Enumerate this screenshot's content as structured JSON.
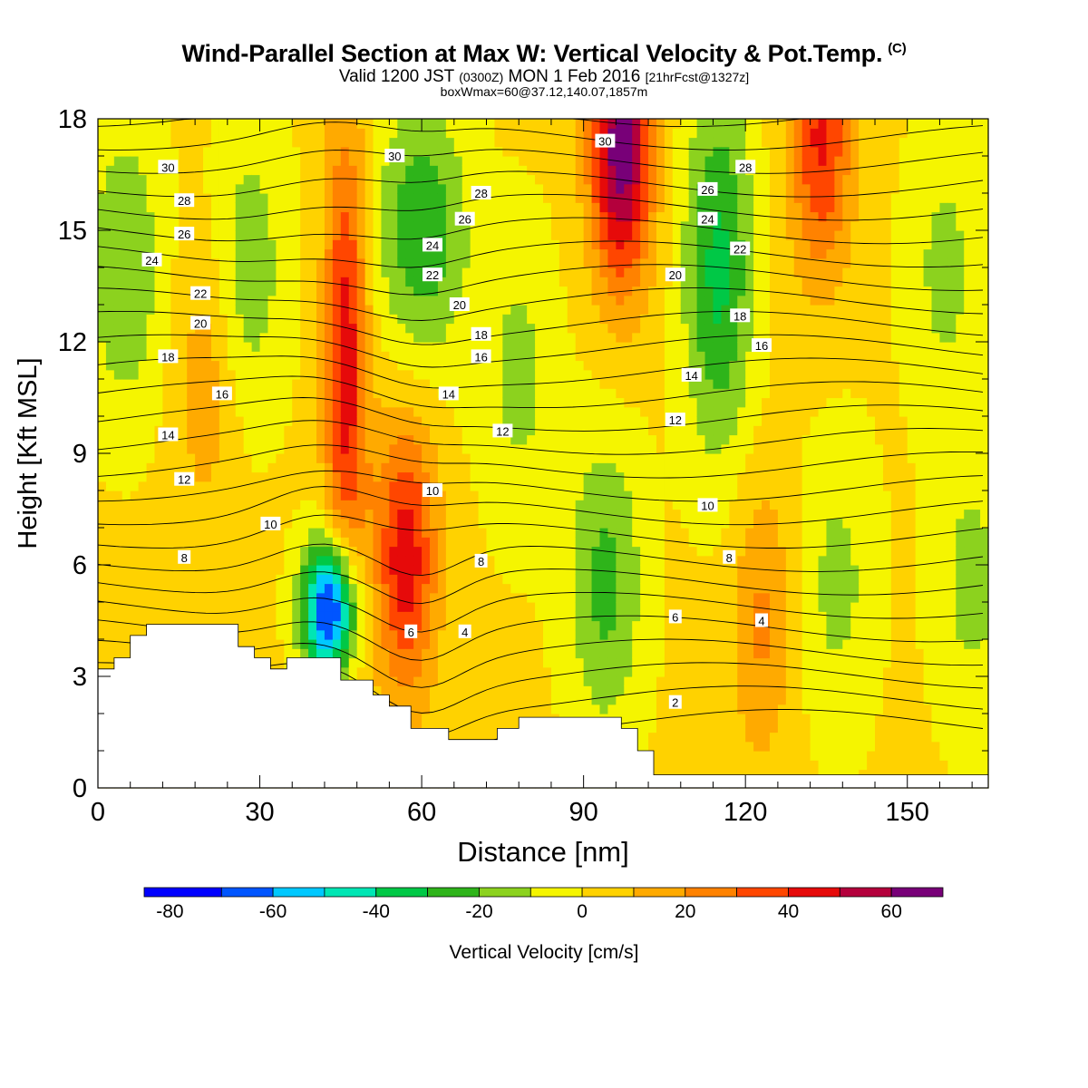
{
  "header": {
    "title": "Wind-Parallel Section at Max W: Vertical Velocity & Pot.Temp.",
    "title_mark": "(C)",
    "valid_prefix": "Valid 1200 JST",
    "valid_utc": "(0300Z)",
    "valid_date": "MON 1 Feb 2016",
    "forecast": "[21hrFcst@1327z]",
    "box_info": "boxWmax=60@37.12,140.07,1857m"
  },
  "chart_data": {
    "type": "heatmap",
    "xlabel": "Distance [nm]",
    "ylabel": "Height [Kft MSL]",
    "xlim": [
      0,
      165
    ],
    "ylim": [
      0,
      18
    ],
    "x_ticks": [
      0,
      30,
      60,
      90,
      120,
      150
    ],
    "y_ticks": [
      0,
      3,
      6,
      9,
      12,
      15,
      18
    ],
    "colorbar": {
      "label": "Vertical Velocity [cm/s]",
      "tick_labels": [
        "-80",
        "-60",
        "-40",
        "-20",
        "0",
        "20",
        "40",
        "60"
      ],
      "tick_values": [
        -80,
        -60,
        -40,
        -20,
        0,
        20,
        40,
        60
      ],
      "range": [
        -85,
        70
      ],
      "levels": [
        -85,
        -70,
        -60,
        -50,
        -40,
        -30,
        -20,
        -10,
        0,
        10,
        20,
        30,
        40,
        50,
        60,
        70
      ],
      "colors": [
        "#0000ff",
        "#0055ff",
        "#00c8ff",
        "#00e6b4",
        "#00c846",
        "#2eb41a",
        "#8cd21e",
        "#f5f500",
        "#ffd200",
        "#ffaa00",
        "#ff8200",
        "#ff4600",
        "#e60a0a",
        "#b4003c",
        "#780078"
      ]
    },
    "vertical_velocity_features": [
      {
        "kind": "updraft",
        "x": 46,
        "y": 11.5,
        "peak": 45
      },
      {
        "kind": "updraft",
        "x": 57,
        "y": 6.2,
        "peak": 45
      },
      {
        "kind": "updraft",
        "x": 97,
        "y": 17.2,
        "peak": 65
      },
      {
        "kind": "updraft",
        "x": 134,
        "y": 17.5,
        "peak": 40
      },
      {
        "kind": "updraft",
        "x": 20,
        "y": 11,
        "peak": 15
      },
      {
        "kind": "updraft",
        "x": 123,
        "y": 4.5,
        "peak": 20
      },
      {
        "kind": "downdraft",
        "x": 43,
        "y": 4.8,
        "peak": -80
      },
      {
        "kind": "downdraft",
        "x": 60,
        "y": 15,
        "peak": -30
      },
      {
        "kind": "downdraft",
        "x": 115,
        "y": 14,
        "peak": -35
      },
      {
        "kind": "downdraft",
        "x": 94,
        "y": 5.5,
        "peak": -25
      },
      {
        "kind": "downdraft",
        "x": 5,
        "y": 14,
        "peak": -22
      },
      {
        "kind": "downdraft",
        "x": 28,
        "y": 14,
        "peak": -18
      },
      {
        "kind": "downdraft",
        "x": 78,
        "y": 11,
        "peak": -15
      },
      {
        "kind": "downdraft",
        "x": 157,
        "y": 14,
        "peak": -15
      },
      {
        "kind": "downdraft",
        "x": 137,
        "y": 5.5,
        "peak": -15
      },
      {
        "kind": "downdraft",
        "x": 162,
        "y": 5.5,
        "peak": -15
      }
    ],
    "theta_contours": {
      "labeled_levels": [
        2,
        4,
        6,
        8,
        10,
        12,
        14,
        16,
        18,
        20,
        22,
        24,
        26,
        28,
        30
      ],
      "labels": [
        {
          "text": "30",
          "x": 13,
          "y": 16.7
        },
        {
          "text": "28",
          "x": 16,
          "y": 15.8
        },
        {
          "text": "26",
          "x": 16,
          "y": 14.9
        },
        {
          "text": "24",
          "x": 10,
          "y": 14.2
        },
        {
          "text": "22",
          "x": 19,
          "y": 13.3
        },
        {
          "text": "20",
          "x": 19,
          "y": 12.5
        },
        {
          "text": "18",
          "x": 13,
          "y": 11.6
        },
        {
          "text": "16",
          "x": 23,
          "y": 10.6
        },
        {
          "text": "14",
          "x": 13,
          "y": 9.5
        },
        {
          "text": "12",
          "x": 16,
          "y": 8.3
        },
        {
          "text": "10",
          "x": 32,
          "y": 7.1
        },
        {
          "text": "8",
          "x": 16,
          "y": 6.2
        },
        {
          "text": "30",
          "x": 55,
          "y": 17.0
        },
        {
          "text": "28",
          "x": 71,
          "y": 16.0
        },
        {
          "text": "26",
          "x": 68,
          "y": 15.3
        },
        {
          "text": "24",
          "x": 62,
          "y": 14.6
        },
        {
          "text": "22",
          "x": 62,
          "y": 13.8
        },
        {
          "text": "20",
          "x": 67,
          "y": 13.0
        },
        {
          "text": "18",
          "x": 71,
          "y": 12.2
        },
        {
          "text": "16",
          "x": 71,
          "y": 11.6
        },
        {
          "text": "14",
          "x": 65,
          "y": 10.6
        },
        {
          "text": "12",
          "x": 75,
          "y": 9.6
        },
        {
          "text": "10",
          "x": 62,
          "y": 8.0
        },
        {
          "text": "8",
          "x": 71,
          "y": 6.1
        },
        {
          "text": "6",
          "x": 58,
          "y": 4.2
        },
        {
          "text": "4",
          "x": 68,
          "y": 4.2
        },
        {
          "text": "30",
          "x": 94,
          "y": 17.4
        },
        {
          "text": "28",
          "x": 120,
          "y": 16.7
        },
        {
          "text": "26",
          "x": 113,
          "y": 16.1
        },
        {
          "text": "24",
          "x": 113,
          "y": 15.3
        },
        {
          "text": "22",
          "x": 119,
          "y": 14.5
        },
        {
          "text": "20",
          "x": 107,
          "y": 13.8
        },
        {
          "text": "18",
          "x": 119,
          "y": 12.7
        },
        {
          "text": "16",
          "x": 123,
          "y": 11.9
        },
        {
          "text": "14",
          "x": 110,
          "y": 11.1
        },
        {
          "text": "12",
          "x": 107,
          "y": 9.9
        },
        {
          "text": "10",
          "x": 113,
          "y": 7.6
        },
        {
          "text": "8",
          "x": 117,
          "y": 6.2
        },
        {
          "text": "6",
          "x": 107,
          "y": 4.6
        },
        {
          "text": "4",
          "x": 123,
          "y": 4.5
        },
        {
          "text": "2",
          "x": 107,
          "y": 2.3
        }
      ]
    },
    "terrain_profile": [
      [
        0,
        3.2
      ],
      [
        3,
        3.2
      ],
      [
        3,
        3.5
      ],
      [
        6,
        3.5
      ],
      [
        6,
        4.1
      ],
      [
        9,
        4.1
      ],
      [
        9,
        4.4
      ],
      [
        26,
        4.4
      ],
      [
        26,
        3.8
      ],
      [
        29,
        3.8
      ],
      [
        29,
        3.5
      ],
      [
        32,
        3.5
      ],
      [
        32,
        3.2
      ],
      [
        35,
        3.2
      ],
      [
        35,
        3.5
      ],
      [
        45,
        3.5
      ],
      [
        45,
        2.9
      ],
      [
        51,
        2.9
      ],
      [
        51,
        2.5
      ],
      [
        54,
        2.5
      ],
      [
        54,
        2.2
      ],
      [
        58,
        2.2
      ],
      [
        58,
        1.6
      ],
      [
        65,
        1.6
      ],
      [
        65,
        1.3
      ],
      [
        74,
        1.3
      ],
      [
        74,
        1.6
      ],
      [
        78,
        1.6
      ],
      [
        78,
        1.9
      ],
      [
        97,
        1.9
      ],
      [
        97,
        1.6
      ],
      [
        100,
        1.6
      ],
      [
        100,
        1.0
      ],
      [
        103,
        1.0
      ],
      [
        103,
        0.35
      ],
      [
        165,
        0.35
      ]
    ]
  }
}
